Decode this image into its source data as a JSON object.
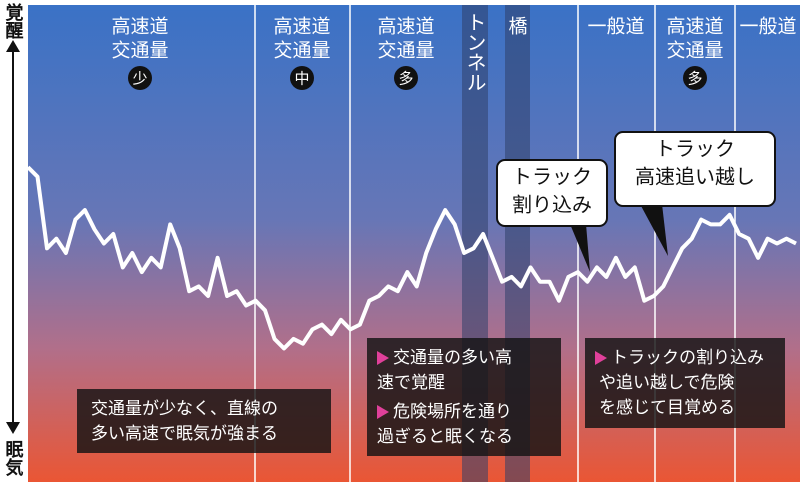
{
  "chart_data": {
    "type": "line",
    "values": [
      66,
      64,
      49,
      51,
      48,
      55,
      57,
      53,
      50,
      52,
      45,
      48,
      44,
      47,
      45,
      54,
      49,
      40,
      41,
      39,
      47,
      39,
      40,
      37,
      38,
      36,
      30,
      28,
      30,
      29,
      32,
      33,
      31,
      34,
      32,
      33,
      38,
      39,
      41,
      40,
      44,
      41,
      48,
      53,
      57,
      54,
      48,
      49,
      52,
      47,
      42,
      43,
      41,
      45,
      42,
      42,
      38,
      43,
      44,
      42,
      45,
      43,
      47,
      43,
      45,
      38,
      39,
      41,
      45,
      49,
      51,
      55,
      54,
      54,
      56,
      52,
      51,
      47,
      51,
      50,
      51,
      50
    ],
    "color": "#ffffff",
    "ylim": [
      0,
      100
    ],
    "y_label_top": "覚醒",
    "y_label_bottom": "眠気"
  },
  "segments": [
    {
      "road": "高速道",
      "traffic": "交通量",
      "level": "少"
    },
    {
      "road": "高速道",
      "traffic": "交通量",
      "level": "中"
    },
    {
      "road": "高速道",
      "traffic": "交通量",
      "level": "多"
    },
    {
      "road": "トンネル"
    },
    {
      "road": "橋"
    },
    {
      "road": "一般道"
    },
    {
      "road": "高速道",
      "traffic": "交通量",
      "level": "多"
    },
    {
      "road": "一般道"
    }
  ],
  "callouts": [
    {
      "lines": [
        "トラック",
        "割り込み"
      ]
    },
    {
      "lines": [
        "トラック",
        "高速追い越し"
      ]
    }
  ],
  "notes": [
    {
      "items": [
        {
          "lines": [
            "交通量が少なく、直線の",
            "多い高速で眠気が強まる"
          ]
        }
      ]
    },
    {
      "items": [
        {
          "lines": [
            "交通量の多い高",
            "速で覚醒"
          ]
        },
        {
          "lines": [
            "危険場所を通り",
            "過ぎると眠くなる"
          ]
        }
      ]
    },
    {
      "items": [
        {
          "lines": [
            "トラックの割り込み",
            "や追い越しで危険",
            "を感じて目覚める"
          ]
        }
      ]
    }
  ]
}
